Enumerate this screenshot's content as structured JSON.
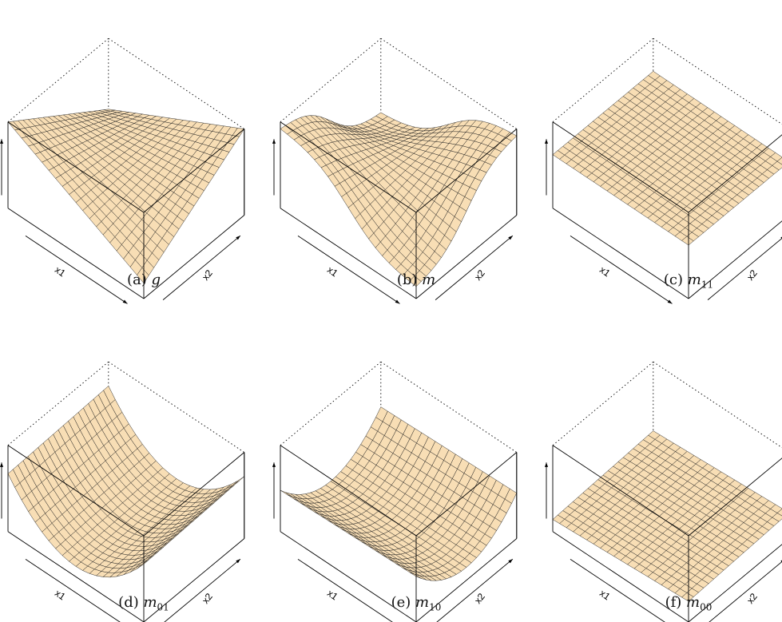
{
  "figure": {
    "panels": [
      {
        "label": "(a)",
        "symbol": "g",
        "subscript": ""
      },
      {
        "label": "(b)",
        "symbol": "m",
        "subscript": ""
      },
      {
        "label": "(c)",
        "symbol": "m",
        "subscript": "11"
      },
      {
        "label": "(d)",
        "symbol": "m",
        "subscript": "01"
      },
      {
        "label": "(e)",
        "symbol": "m",
        "subscript": "10"
      },
      {
        "label": "(f)",
        "symbol": "m",
        "subscript": "00"
      }
    ]
  },
  "colors": {
    "surface": "#f8deb5",
    "mesh": "#1a1a1a",
    "box": "#000000",
    "background": "#ffffff"
  },
  "chart_data": [
    {
      "type": "surface",
      "xlabel": "x1",
      "ylabel": "x2",
      "zlabel": "",
      "grid": true,
      "shape": "saddle, corners high along x1=x2 diagonal (max 1) and low along anti-diagonal"
    },
    {
      "type": "surface",
      "xlabel": "x1",
      "ylabel": "x2",
      "zlabel": "",
      "grid": true,
      "shape": "smoothed saddle similar to g"
    },
    {
      "type": "surface",
      "xlabel": "x1",
      "ylabel": "x2",
      "zlabel": "",
      "grid": true,
      "shape": "flat plane at mid-high level"
    },
    {
      "type": "surface",
      "xlabel": "x1",
      "ylabel": "x2",
      "zlabel": "",
      "grid": true,
      "shape": "U-shaped valley along x1 direction"
    },
    {
      "type": "surface",
      "xlabel": "x1",
      "ylabel": "x2",
      "zlabel": "",
      "grid": true,
      "shape": "U-shaped valley along x2 direction, low level"
    },
    {
      "type": "surface",
      "xlabel": "x1",
      "ylabel": "x2",
      "zlabel": "",
      "grid": true,
      "shape": "nearly flat low plane"
    }
  ]
}
